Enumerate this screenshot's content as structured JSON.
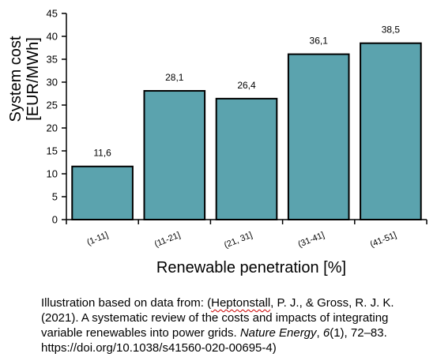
{
  "chart_data": {
    "type": "bar",
    "categories": [
      "(1-11]",
      "(11-21]",
      "(21, 31]",
      "(31-41]",
      "(41-51]"
    ],
    "values": [
      11.6,
      28.1,
      26.4,
      36.1,
      38.5
    ],
    "value_labels": [
      "11,6",
      "28,1",
      "26,4",
      "36,1",
      "38,5"
    ],
    "ylabel_line1": "System cost",
    "ylabel_line2": "[EUR/MWh]",
    "xlabel": "Renewable penetration [%]",
    "ylim": [
      0,
      45
    ],
    "yticks": [
      0,
      5,
      10,
      15,
      20,
      25,
      30,
      35,
      40,
      45
    ],
    "grid": false,
    "legend": "none",
    "bar_color": "#5ba3ae",
    "bar_edge_color": "#000000"
  },
  "caption": {
    "line1_prefix": "Illustration based on data from: (",
    "line1_author": "Heptonstall",
    "line1_suffix": ", P. J., & Gross, R. J. K.",
    "line2": "(2021). A systematic review of the costs and impacts of integrating",
    "line3_prefix": "variable renewables into power grids. ",
    "line3_journal": "Nature Energy",
    "line3_mid": ", ",
    "line3_volume": "6",
    "line3_suffix": "(1), 72–83.",
    "line4": "https://doi.org/10.1038/s41560-020-00695-4)"
  }
}
